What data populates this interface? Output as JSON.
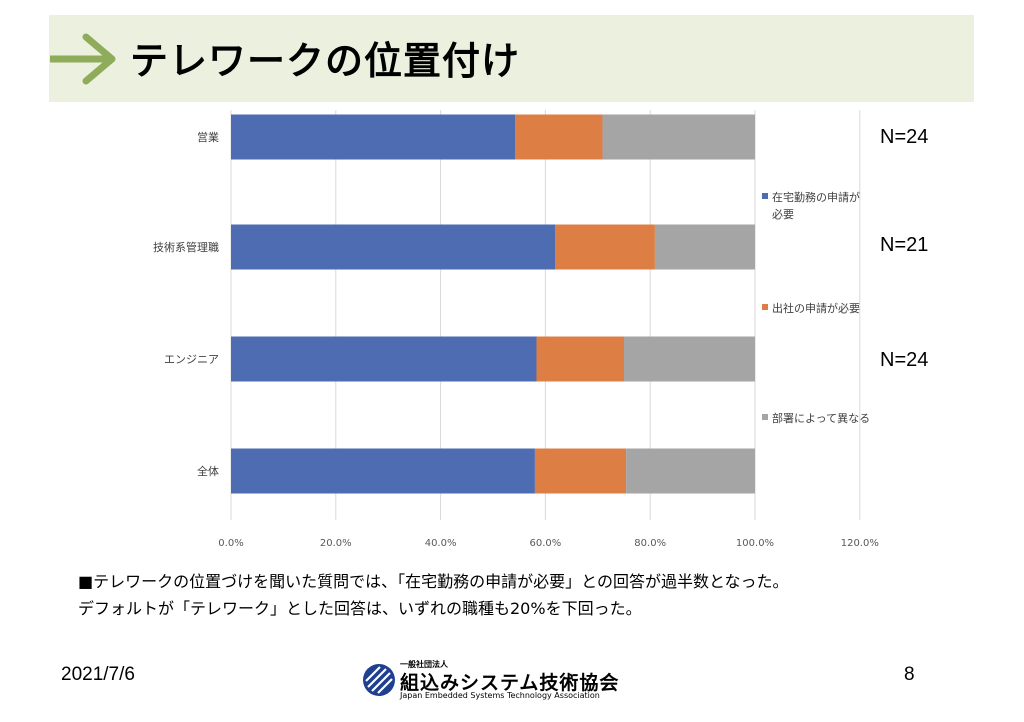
{
  "title": "テレワークの位置付け",
  "n_labels": [
    "N=24",
    "N=21",
    "N=24"
  ],
  "summary_lines": [
    "■テレワークの位置づけを聞いた質問では、「在宅勤務の申請が必要」との回答が過半数となった。",
    "デフォルトが「テレワーク」とした回答は、いずれの職種も20%を下回った。"
  ],
  "footer": {
    "date": "2021/7/6",
    "page": "8"
  },
  "logo": {
    "small": "一般社団法人",
    "main": "組込みシステム技術協会",
    "english": "Japan Embedded Systems Technology Association"
  },
  "colors": {
    "title_band": "#ebf1de",
    "arrow": "#8fac5a",
    "blue": "#4e6cb2",
    "orange": "#dd7f45",
    "gray": "#a5a5a5"
  },
  "chart_data": {
    "type": "bar",
    "orientation": "horizontal",
    "stacked": true,
    "categories": [
      "営業",
      "技術系管理職",
      "エンジニア",
      "全体"
    ],
    "series": [
      {
        "name": "在宅勤務の申請が必要",
        "legend_lines": [
          "在宅勤務の申請が",
          "必要"
        ],
        "color": "#4e6cb2",
        "values": [
          54.2,
          61.9,
          58.3,
          58.0
        ]
      },
      {
        "name": "出社の申請が必要",
        "legend_lines": [
          "出社の申請が必要"
        ],
        "color": "#dd7f45",
        "values": [
          16.7,
          19.0,
          16.7,
          17.4
        ]
      },
      {
        "name": "部署によって異なる",
        "legend_lines": [
          "部署によって異なる"
        ],
        "color": "#a5a5a5",
        "values": [
          29.1,
          19.1,
          25.0,
          24.6
        ]
      }
    ],
    "xlim": [
      0,
      120
    ],
    "xticks": [
      0,
      20,
      40,
      60,
      80,
      100,
      120
    ],
    "xtick_labels": [
      "0.0%",
      "20.0%",
      "40.0%",
      "60.0%",
      "80.0%",
      "100.0%",
      "120.0%"
    ],
    "grid": true,
    "legend": "right",
    "xlabel": "",
    "ylabel": ""
  }
}
